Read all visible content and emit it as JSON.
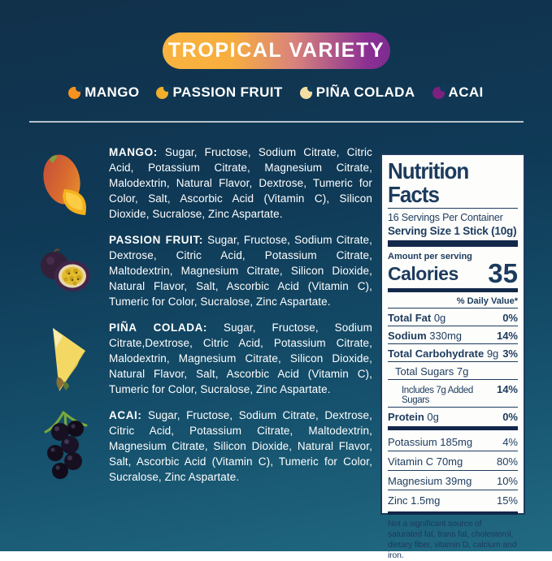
{
  "banner": {
    "title": "TROPICAL VARIETY"
  },
  "legend": {
    "items": [
      {
        "label": "MANGO",
        "color": "#F6921E"
      },
      {
        "label": "PASSION FRUIT",
        "color": "#F2AF2A"
      },
      {
        "label": "PIÑA COLADA",
        "color": "#F3DFA3"
      },
      {
        "label": "ACAI",
        "color": "#7D2181"
      }
    ]
  },
  "ingredients": [
    {
      "flavor": "MANGO:",
      "icon": "mango",
      "text": "Sugar, Fructose, Sodium Citrate, Citric Acid, Potassium Citrate, Magnesium Citrate, Malodextrin, Natural Flavor, Dextrose, Tumeric for Color, Salt, Ascorbic Acid (Vitamin C), Silicon Dioxide, Sucralose, Zinc Aspartate."
    },
    {
      "flavor": "PASSION FRUIT:",
      "icon": "passion-fruit",
      "text": "Sugar, Fructose, Sodium Citrate, Dextrose, Citric Acid, Potassium Citrate, Maltodextrin, Magnesium Citrate, Silicon Dioxide, Natural Flavor, Salt, Ascorbic Acid (Vitamin C), Tumeric for Color, Sucralose, Zinc Aspartate."
    },
    {
      "flavor": "PIÑA COLADA:",
      "icon": "pineapple",
      "text": "Sugar, Fructose, Sodium Citrate,Dextrose, Citric Acid, Potassium Citrate, Malodextrin, Magnesium Citrate, Silicon Dioxide, Natural Flavor, Salt, Ascorbic Acid (Vitamin C), Tumeric for Color, Sucralose, Zinc Aspartate."
    },
    {
      "flavor": "ACAI:",
      "icon": "acai",
      "text": "Sugar, Fructose, Sodium Citrate, Dextrose, Citric Acid, Potassium Citrate, Maltodextrin, Magnesium Citrate, Silicon Dioxide, Natural Flavor, Salt, Ascorbic Acid (Vitamin C), Tumeric for Color, Sucralose, Zinc Aspartate."
    }
  ],
  "nutrition": {
    "title": "Nutrition Facts",
    "servings_per_container": "16 Servings Per Container",
    "serving_size": "Serving Size 1 Stick (10g)",
    "amount_label": "Amount per serving",
    "calories_label": "Calories",
    "calories_value": "35",
    "daily_value_header": "% Daily Value*",
    "rows": [
      {
        "label": "Total Fat",
        "amount": "0g",
        "dv": "0%",
        "bold": true,
        "dv_bold": true,
        "indent": 0
      },
      {
        "label": "Sodium",
        "amount": "330mg",
        "dv": "14%",
        "bold": true,
        "dv_bold": true,
        "indent": 0
      },
      {
        "label": "Total Carbohydrate",
        "amount": "9g",
        "dv": "3%",
        "bold": true,
        "dv_bold": true,
        "indent": 0
      },
      {
        "label": "Total Sugars",
        "amount": "7g",
        "dv": "",
        "bold": false,
        "dv_bold": false,
        "indent": 1
      },
      {
        "label": "Includes 7g Added Sugars",
        "amount": "",
        "dv": "14%",
        "bold": false,
        "dv_bold": true,
        "indent": 2,
        "condensed": true
      },
      {
        "label": "Protein",
        "amount": "0g",
        "dv": "0%",
        "bold": true,
        "dv_bold": true,
        "indent": 0
      }
    ],
    "vitamins": [
      {
        "label": "Potassium 185mg",
        "dv": "4%"
      },
      {
        "label": "Vitamin C 70mg",
        "dv": "80%"
      },
      {
        "label": "Magnesium 39mg",
        "dv": "10%"
      },
      {
        "label": "Zinc 1.5mg",
        "dv": "15%"
      }
    ],
    "footnote": "Not a significant source of saturated fat, trans fat, cholesterol, dietary fiber, vitamin D, calcium and iron."
  }
}
